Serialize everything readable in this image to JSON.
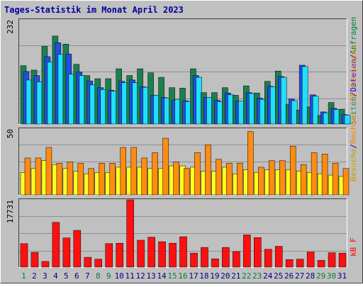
{
  "chart_data": {
    "type": "bar",
    "title": "Tages-Statistik im Monat April 2023",
    "categories": [
      "1",
      "2",
      "3",
      "4",
      "5",
      "6",
      "7",
      "8",
      "9",
      "10",
      "11",
      "12",
      "13",
      "14",
      "15",
      "16",
      "17",
      "18",
      "19",
      "20",
      "21",
      "22",
      "23",
      "24",
      "25",
      "26",
      "27",
      "28",
      "29",
      "30",
      "31"
    ],
    "category_colors": [
      "#008040",
      "#000080",
      "#000080",
      "#000080",
      "#000080",
      "#000080",
      "#000080",
      "#008040",
      "#008040",
      "#000080",
      "#000080",
      "#000080",
      "#000080",
      "#000080",
      "#008040",
      "#008040",
      "#000080",
      "#000080",
      "#000080",
      "#000080",
      "#000080",
      "#008040",
      "#008040",
      "#000080",
      "#000080",
      "#000080",
      "#000080",
      "#000080",
      "#008040",
      "#008040",
      "#000080"
    ],
    "panels": [
      {
        "id": "top",
        "ymax_label": "232",
        "ylim": [
          0,
          232
        ],
        "series": [
          {
            "name": "Anfragen",
            "color": "#1b8050",
            "values": [
              130,
              120,
              173,
              196,
              178,
              133,
              108,
              101,
              101,
              123,
              108,
              123,
              114,
              104,
              81,
              80,
              123,
              70,
              70,
              81,
              64,
              85,
              69,
              95,
              118,
              44,
              31,
              38,
              19,
              48,
              33
            ]
          },
          {
            "name": "Dateien",
            "color": "#2050e0",
            "values": [
              117,
              108,
              150,
              181,
              156,
              116,
              96,
              81,
              75,
              95,
              98,
              83,
              64,
              59,
              53,
              52,
              108,
              59,
              53,
              69,
              51,
              70,
              58,
              84,
              106,
              56,
              131,
              65,
              27,
              35,
              21
            ]
          },
          {
            "name": "Seiten",
            "color": "#20e0ff",
            "values": [
              98,
              94,
              138,
              155,
              111,
              108,
              87,
              77,
              73,
              92,
              92,
              82,
              64,
              58,
              55,
              50,
              104,
              59,
              50,
              65,
              51,
              68,
              55,
              83,
              104,
              52,
              128,
              62,
              25,
              32,
              20
            ]
          }
        ]
      },
      {
        "id": "middle",
        "ymax_label": "50",
        "ylim": [
          0,
          50
        ],
        "series": [
          {
            "name": "Besuche",
            "color": "#ffff20",
            "values": [
              17,
              20,
              26,
              23,
              20,
              18,
              16,
              17,
              17,
              21,
              21,
              21,
              20,
              20,
              22,
              22,
              21,
              18,
              18,
              21,
              16,
              19,
              17,
              19,
              19,
              19,
              18,
              17,
              16,
              15,
              14
            ]
          },
          {
            "name": "Rechner (IP-Adressen)",
            "color": "#ff8c10",
            "values": [
              28,
              28,
              36,
              24,
              25,
              24,
              20,
              24,
              24,
              36,
              36,
              28,
              32,
              43,
              25,
              20,
              32,
              38,
              27,
              24,
              24,
              48,
              21,
              26,
              26,
              37,
              23,
              32,
              31,
              24,
              20
            ]
          }
        ]
      },
      {
        "id": "bottom",
        "ymax_label": "17731",
        "ylim": [
          0,
          17731
        ],
        "series": [
          {
            "name": "kB F",
            "color": "#ff1010",
            "values": [
              6200,
              3900,
              1500,
              11800,
              7700,
              9700,
              2600,
              2100,
              6200,
              6300,
              17731,
              7100,
              7900,
              6700,
              6300,
              8000,
              3700,
              5200,
              2200,
              5200,
              4100,
              8500,
              7800,
              4700,
              5500,
              2000,
              2100,
              4000,
              1800,
              3800,
              3700
            ]
          }
        ]
      }
    ],
    "legend_right": {
      "top_parts": [
        {
          "text": "Seiten",
          "color": "#00a0a0"
        },
        {
          "text": "/",
          "color": "#000080"
        },
        {
          "text": "Dateien",
          "color": "#0000ff"
        },
        {
          "text": "/",
          "color": "#000080"
        },
        {
          "text": "Anfragen",
          "color": "#008040"
        }
      ],
      "middle_parts": [
        {
          "text": "Besuche",
          "color": "#c0a000"
        },
        {
          "text": "/",
          "color": "#000080"
        },
        {
          "text": "Rechner (IP-Adressen)",
          "color": "#ff8000"
        }
      ],
      "bottom_parts": [
        {
          "text": "kB F",
          "color": "#ff0000"
        }
      ]
    },
    "colors": {
      "background": "#c0c0c0",
      "title": "#0000a0",
      "grid": "#909090",
      "frame_dark": "#404040",
      "frame_light": "#ffffff",
      "day_label": "#008040"
    }
  }
}
